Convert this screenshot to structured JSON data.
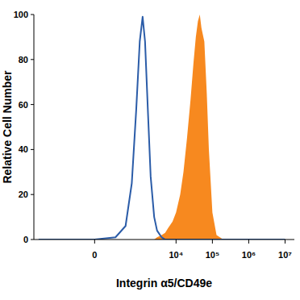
{
  "chart_data": {
    "type": "line",
    "x_label": "Integrin α5/CD49e",
    "y_label": "Relative Cell Number",
    "x": [
      -2000,
      -500,
      0,
      200,
      400,
      600,
      800,
      1000,
      1200,
      1400,
      1700,
      2000,
      2500,
      3000,
      4000,
      5000,
      6000,
      8000,
      10000,
      13000,
      16000,
      20000,
      25000,
      30000,
      35000,
      40000,
      45000,
      50000,
      60000,
      70000,
      80000,
      100000,
      130000,
      200000,
      1000000,
      10000000
    ],
    "series": [
      {
        "type": "line",
        "color": "#2b5ca8",
        "values": [
          0,
          0,
          0,
          1,
          6,
          25,
          58,
          88,
          99,
          88,
          55,
          28,
          10,
          4,
          1,
          0,
          0,
          0,
          0,
          0,
          0,
          0,
          0,
          0,
          0,
          0,
          0,
          0,
          0,
          0,
          0,
          0,
          0,
          0,
          0,
          0
        ]
      },
      {
        "type": "area",
        "color": "#f7891f",
        "values": [
          0,
          0,
          0,
          0,
          0,
          0,
          0,
          0,
          0,
          0,
          0,
          0,
          0,
          1,
          2,
          3,
          5,
          8,
          12,
          20,
          30,
          45,
          62,
          78,
          90,
          97,
          100,
          94,
          88,
          65,
          40,
          12,
          2,
          0,
          0,
          0
        ]
      }
    ],
    "log": "x",
    "xlim": [
      -2700,
      18000000
    ],
    "xticks": [
      0,
      {
        "value": 10000,
        "label": "10⁴"
      },
      {
        "value": 100000,
        "label": "10⁵"
      },
      {
        "value": 1000000,
        "label": "10⁶"
      },
      {
        "value": 10000000,
        "label": "10⁷"
      }
    ],
    "ylim": [
      0,
      100
    ],
    "yticks": [
      0,
      20,
      40,
      60,
      80,
      100
    ],
    "grid": false
  }
}
